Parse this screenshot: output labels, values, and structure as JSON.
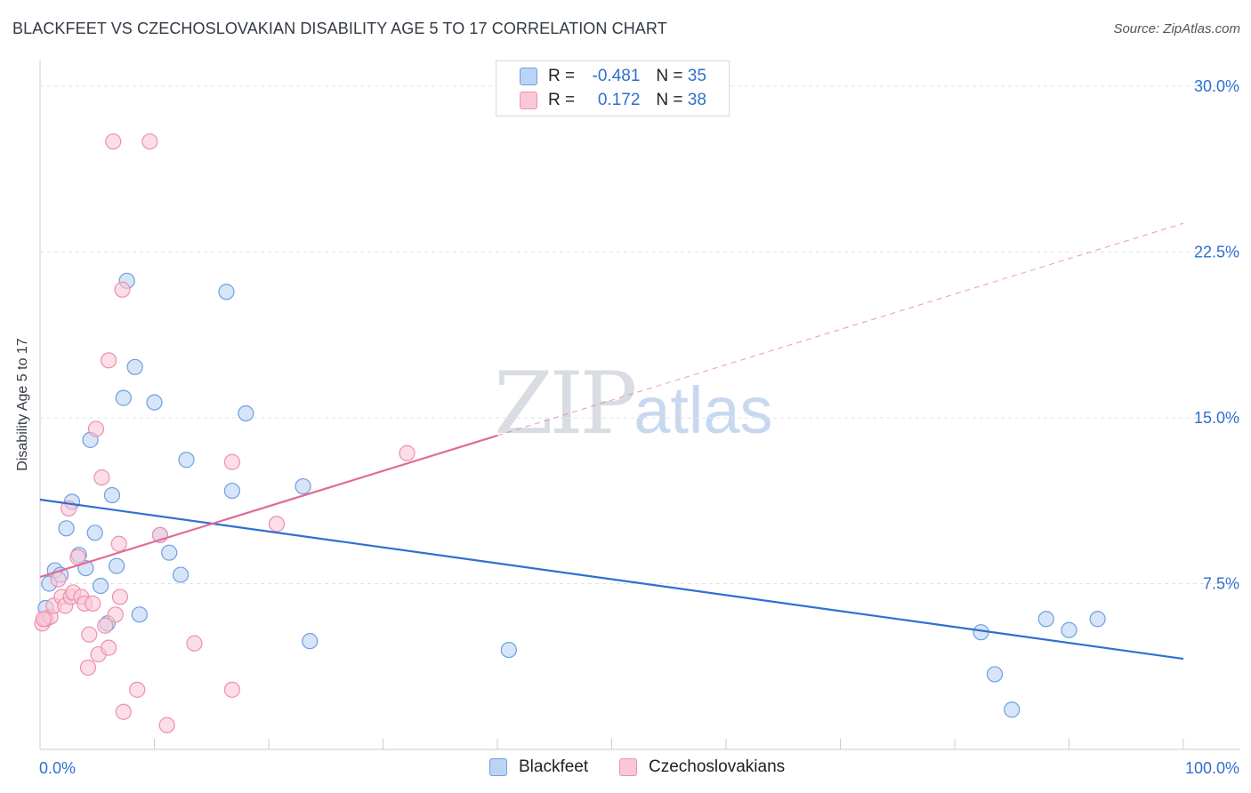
{
  "title": "BLACKFEET VS CZECHOSLOVAKIAN DISABILITY AGE 5 TO 17 CORRELATION CHART",
  "source": "Source: ZipAtlas.com",
  "watermark": {
    "zip": "ZIP",
    "atlas": "atlas"
  },
  "legend": {
    "r_label": "R =",
    "n_label": "N =",
    "rows": [
      {
        "r": "-0.481",
        "n": "35"
      },
      {
        "r": "0.172",
        "n": "38"
      }
    ]
  },
  "chart_data": {
    "type": "scatter",
    "title": "BLACKFEET VS CZECHOSLOVAKIAN DISABILITY AGE 5 TO 17 CORRELATION CHART",
    "xlabel": "",
    "ylabel": "Disability Age 5 to 17",
    "xlim": [
      0,
      100
    ],
    "ylim": [
      0,
      31
    ],
    "x_tick_labels": [
      "0.0%",
      "100.0%"
    ],
    "y_ticks": [
      7.5,
      15.0,
      22.5,
      30.0
    ],
    "y_tick_labels": [
      "7.5%",
      "15.0%",
      "22.5%",
      "30.0%"
    ],
    "colors": {
      "blue": "#6f9ee0",
      "blue_fill": "#bcd4f4",
      "pink": "#ef8fae",
      "pink_fill": "#f9c8d7",
      "blue_line": "#2f6fcf",
      "pink_line": "#e06c96",
      "axis_text": "#2f6fcf"
    },
    "series": [
      {
        "name": "Blackfeet",
        "color": "#6f9ee0",
        "points": [
          [
            0.5,
            6.4
          ],
          [
            1.3,
            8.1
          ],
          [
            1.8,
            7.9
          ],
          [
            2.3,
            10.0
          ],
          [
            2.8,
            11.2
          ],
          [
            3.4,
            8.8
          ],
          [
            4.0,
            8.2
          ],
          [
            4.4,
            14.0
          ],
          [
            4.8,
            9.8
          ],
          [
            5.3,
            7.4
          ],
          [
            5.9,
            5.7
          ],
          [
            6.3,
            11.5
          ],
          [
            6.7,
            8.3
          ],
          [
            7.3,
            15.9
          ],
          [
            8.3,
            17.3
          ],
          [
            8.7,
            6.1
          ],
          [
            10.0,
            15.7
          ],
          [
            10.5,
            9.7
          ],
          [
            11.3,
            8.9
          ],
          [
            12.3,
            7.9
          ],
          [
            12.8,
            13.1
          ],
          [
            7.6,
            21.2
          ],
          [
            16.3,
            20.7
          ],
          [
            16.8,
            11.7
          ],
          [
            18.0,
            15.2
          ],
          [
            23.0,
            11.9
          ],
          [
            23.6,
            4.9
          ],
          [
            41.0,
            4.5
          ],
          [
            82.3,
            5.3
          ],
          [
            83.5,
            3.4
          ],
          [
            85.0,
            1.8
          ],
          [
            88.0,
            5.9
          ],
          [
            90.0,
            5.4
          ],
          [
            92.5,
            5.9
          ],
          [
            0.8,
            7.5
          ]
        ]
      },
      {
        "name": "Czechoslovakians",
        "color": "#ef8fae",
        "points": [
          [
            0.2,
            5.7
          ],
          [
            0.5,
            5.9
          ],
          [
            0.9,
            6.0
          ],
          [
            1.2,
            6.5
          ],
          [
            1.6,
            7.7
          ],
          [
            1.9,
            6.9
          ],
          [
            2.2,
            6.5
          ],
          [
            2.5,
            10.9
          ],
          [
            2.7,
            6.9
          ],
          [
            2.9,
            7.1
          ],
          [
            3.3,
            8.7
          ],
          [
            3.6,
            6.9
          ],
          [
            3.9,
            6.6
          ],
          [
            4.2,
            3.7
          ],
          [
            4.3,
            5.2
          ],
          [
            4.6,
            6.6
          ],
          [
            4.9,
            14.5
          ],
          [
            5.1,
            4.3
          ],
          [
            5.4,
            12.3
          ],
          [
            5.7,
            5.6
          ],
          [
            6.0,
            4.6
          ],
          [
            6.0,
            17.6
          ],
          [
            6.4,
            27.5
          ],
          [
            6.6,
            6.1
          ],
          [
            6.9,
            9.3
          ],
          [
            7.0,
            6.9
          ],
          [
            7.2,
            20.8
          ],
          [
            7.3,
            1.7
          ],
          [
            8.5,
            2.7
          ],
          [
            9.6,
            27.5
          ],
          [
            10.5,
            9.7
          ],
          [
            11.1,
            1.1
          ],
          [
            13.5,
            4.8
          ],
          [
            16.8,
            2.7
          ],
          [
            16.8,
            13.0
          ],
          [
            20.7,
            10.2
          ],
          [
            32.1,
            13.4
          ],
          [
            0.3,
            5.9
          ]
        ]
      }
    ],
    "trendlines": [
      {
        "series": "Blackfeet",
        "x0": 0,
        "y0": 11.3,
        "x1": 100,
        "y1": 4.1,
        "style": "solid"
      },
      {
        "series": "Czechoslovakians",
        "x0": 0,
        "y0": 7.8,
        "x1": 40,
        "y1": 14.2,
        "style": "solid"
      },
      {
        "series": "Czechoslovakians",
        "x0": 40,
        "y0": 14.2,
        "x1": 100,
        "y1": 23.8,
        "style": "dashed"
      }
    ]
  },
  "bottom_legend": [
    {
      "label": "Blackfeet"
    },
    {
      "label": "Czechoslovakians"
    }
  ]
}
